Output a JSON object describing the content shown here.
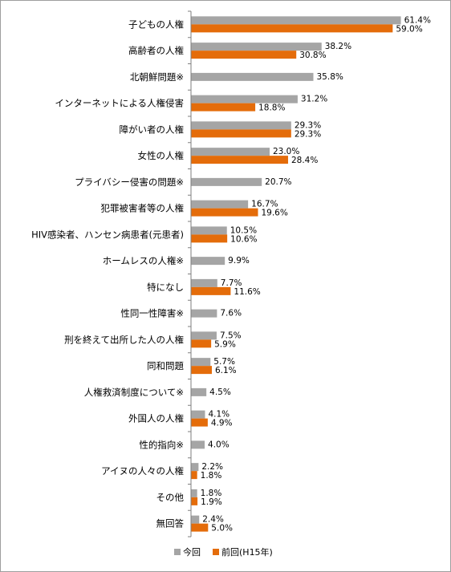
{
  "chart_data": {
    "type": "bar",
    "orientation": "horizontal",
    "categories": [
      "子どもの人権",
      "高齢者の人権",
      "北朝鮮問題※",
      "インターネットによる人権侵害",
      "障がい者の人権",
      "女性の人権",
      "プライバシー侵害の問題※",
      "犯罪被害者等の人権",
      "HIV感染者、ハンセン病患者(元患者)",
      "ホームレスの人権※",
      "特になし",
      "性同一性障害※",
      "刑を終えて出所した人の人権",
      "同和問題",
      "人権救済制度について※",
      "外国人の人権",
      "性的指向※",
      "アイヌの人々の人権",
      "その他",
      "無回答"
    ],
    "series": [
      {
        "name": "今回",
        "color": "#a5a5a5",
        "values": [
          61.4,
          38.2,
          35.8,
          31.2,
          29.3,
          23.0,
          20.7,
          16.7,
          10.5,
          9.9,
          7.7,
          7.6,
          7.5,
          5.7,
          4.5,
          4.1,
          4.0,
          2.2,
          1.8,
          2.4
        ],
        "labels": [
          "61.4%",
          "38.2%",
          "35.8%",
          "31.2%",
          "29.3%",
          "23.0%",
          "20.7%",
          "16.7%",
          "10.5%",
          "9.9%",
          "7.7%",
          "7.6%",
          "7.5%",
          "5.7%",
          "4.5%",
          "4.1%",
          "4.0%",
          "2.2%",
          "1.8%",
          "2.4%"
        ]
      },
      {
        "name": "前回(H15年)",
        "color": "#e46c0a",
        "values": [
          59.0,
          30.8,
          null,
          18.8,
          29.3,
          28.4,
          null,
          19.6,
          10.6,
          null,
          11.6,
          null,
          5.9,
          6.1,
          null,
          4.9,
          null,
          1.8,
          1.9,
          5.0
        ],
        "labels": [
          "59.0%",
          "30.8%",
          null,
          "18.8%",
          "29.3%",
          "28.4%",
          null,
          "19.6%",
          "10.6%",
          null,
          "11.6%",
          null,
          "5.9%",
          "6.1%",
          null,
          "4.9%",
          null,
          "1.8%",
          "1.9%",
          "5.0%"
        ]
      }
    ],
    "xlim": [
      0,
      70
    ],
    "grid": false,
    "legend_position": "bottom"
  }
}
